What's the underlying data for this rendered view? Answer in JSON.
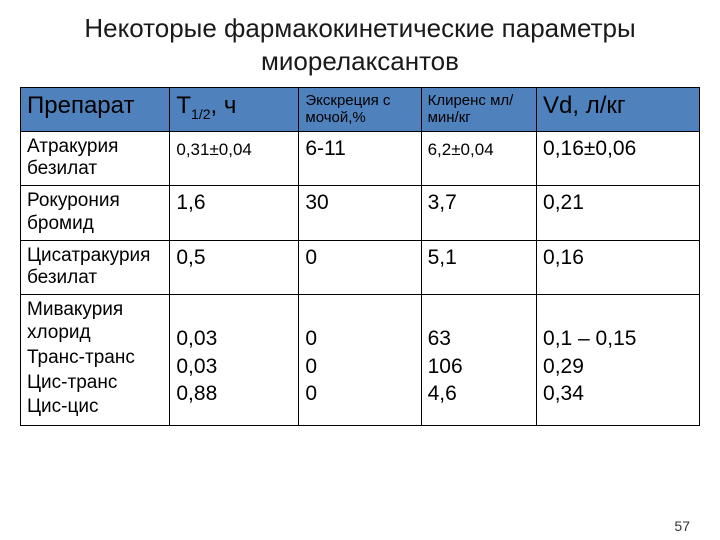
{
  "title_line1": "Некоторые фармакокинетические параметры",
  "title_line2": "миорелаксантов",
  "page_number": "57",
  "table": {
    "header_bg": "#4f81bd",
    "columns": [
      {
        "label": "Препарат",
        "size": "big"
      },
      {
        "label_html": "T<span class='sub'>1/2</span>, ч",
        "size": "big"
      },
      {
        "label": "Экскреция с мочой,%",
        "size": "small"
      },
      {
        "label": "Клиренс мл/мин/кг",
        "size": "small"
      },
      {
        "label": "Vd, л/кг",
        "size": "big"
      }
    ],
    "rows": [
      {
        "drug": "Атракурия безилат",
        "t12": "0,31±0,04",
        "t12_small": true,
        "excr": "6-11",
        "clr": "6,2±0,04",
        "clr_small": true,
        "vd": "0,16±0,06"
      },
      {
        "drug": "Рокурония бромид",
        "t12": "1,6",
        "excr": "30",
        "clr": "3,7",
        "vd": "0,21"
      },
      {
        "drug": "Цисатракурия безилат",
        "t12": "0,5",
        "excr": "0",
        "clr": "5,1",
        "vd": "0,16"
      },
      {
        "drug_multi": [
          "Мивакурия хлорид",
          "Транс-транс",
          "Цис-транс",
          "Цис-цис"
        ],
        "t12_multi": [
          "",
          "0,03",
          "0,03",
          "0,88"
        ],
        "excr_multi": [
          "",
          "0",
          "0",
          "0"
        ],
        "clr_multi": [
          "",
          "63",
          "106",
          "4,6"
        ],
        "vd_multi": [
          "",
          "0,1 – 0,15",
          "0,29",
          "0,34"
        ]
      }
    ]
  }
}
